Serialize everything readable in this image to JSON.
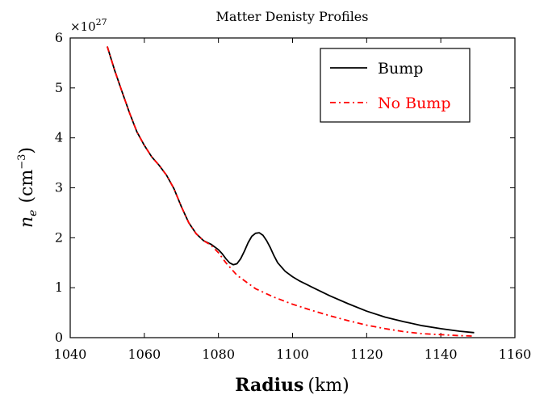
{
  "chart_data": {
    "type": "line",
    "title": "Matter Denisty Profiles",
    "xlabel_main": "Radius",
    "xlabel_unit": "(km)",
    "ylabel_symbol": "n",
    "ylabel_subscript": "e",
    "ylabel_unit_base": "cm",
    "ylabel_unit_exp": "−3",
    "y_multiplier_base": "×10",
    "y_multiplier_exp": "27",
    "xlim": [
      1040,
      1160
    ],
    "ylim": [
      0,
      6
    ],
    "xticks": [
      "1040",
      "1060",
      "1080",
      "1100",
      "1120",
      "1140",
      "1160"
    ],
    "yticks": [
      "0",
      "1",
      "2",
      "3",
      "4",
      "5",
      "6"
    ],
    "grid": false,
    "legend": "top-right",
    "series": [
      {
        "name": "Bump",
        "color": "#000000",
        "style": "solid",
        "x": [
          1050,
          1052,
          1054,
          1056,
          1058,
          1060,
          1062,
          1064,
          1066,
          1068,
          1070,
          1072,
          1074,
          1076,
          1078,
          1080,
          1081,
          1082,
          1083,
          1084,
          1085,
          1086,
          1087,
          1088,
          1089,
          1090,
          1091,
          1092,
          1093,
          1094,
          1095,
          1096,
          1098,
          1100,
          1102,
          1105,
          1110,
          1115,
          1120,
          1125,
          1130,
          1135,
          1140,
          1145,
          1149
        ],
        "y": [
          5.83,
          5.35,
          4.92,
          4.5,
          4.12,
          3.85,
          3.62,
          3.45,
          3.25,
          2.98,
          2.62,
          2.3,
          2.08,
          1.94,
          1.87,
          1.76,
          1.68,
          1.58,
          1.5,
          1.46,
          1.48,
          1.58,
          1.73,
          1.9,
          2.03,
          2.09,
          2.1,
          2.05,
          1.94,
          1.8,
          1.64,
          1.5,
          1.33,
          1.22,
          1.13,
          1.02,
          0.84,
          0.68,
          0.53,
          0.41,
          0.32,
          0.24,
          0.18,
          0.13,
          0.1
        ]
      },
      {
        "name": "No Bump",
        "color": "#ff0000",
        "style": "dashdot",
        "x": [
          1050,
          1052,
          1054,
          1056,
          1058,
          1060,
          1062,
          1064,
          1066,
          1068,
          1070,
          1072,
          1074,
          1076,
          1078,
          1080,
          1082,
          1085,
          1090,
          1095,
          1100,
          1105,
          1110,
          1115,
          1120,
          1125,
          1130,
          1135,
          1140,
          1145,
          1149
        ],
        "y": [
          5.83,
          5.35,
          4.92,
          4.5,
          4.12,
          3.85,
          3.62,
          3.45,
          3.25,
          2.98,
          2.62,
          2.3,
          2.08,
          1.94,
          1.85,
          1.7,
          1.5,
          1.25,
          0.98,
          0.81,
          0.67,
          0.55,
          0.44,
          0.34,
          0.25,
          0.18,
          0.12,
          0.08,
          0.06,
          0.04,
          0.03
        ]
      }
    ]
  }
}
